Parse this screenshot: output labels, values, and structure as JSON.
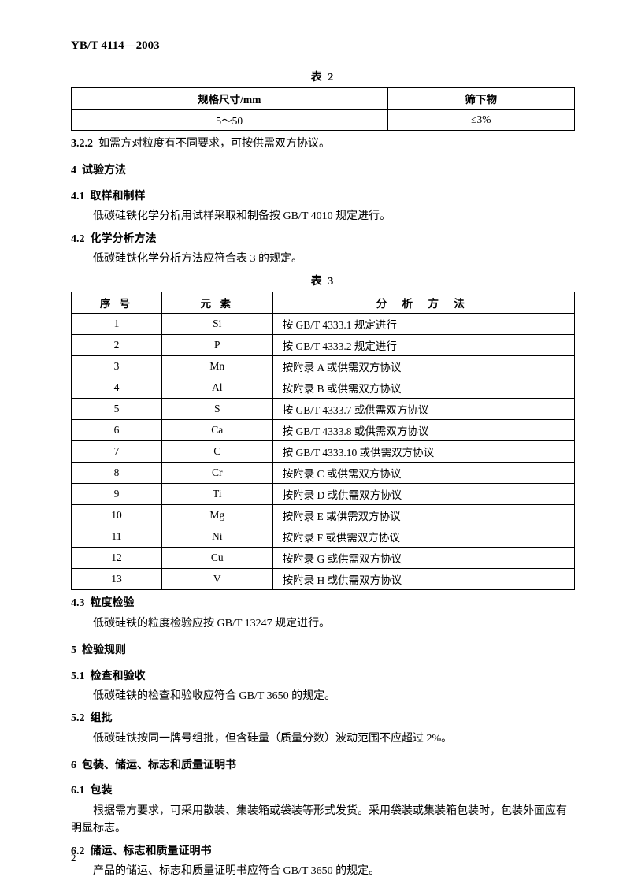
{
  "header": "YB/T 4114—2003",
  "table2": {
    "caption": "表 2",
    "columns": [
      "规格尺寸/mm",
      "筛下物"
    ],
    "row": [
      "5～50",
      "≤3%"
    ]
  },
  "s3_2_2": {
    "num": "3.2.2",
    "text": "如需方对粒度有不同要求，可按供需双方协议。"
  },
  "s4": {
    "num": "4",
    "title": "试验方法"
  },
  "s4_1": {
    "num": "4.1",
    "title": "取样和制样",
    "body": "低碳硅铁化学分析用试样采取和制备按 GB/T 4010 规定进行。"
  },
  "s4_2": {
    "num": "4.2",
    "title": "化学分析方法",
    "body": "低碳硅铁化学分析方法应符合表 3 的规定。"
  },
  "table3": {
    "caption": "表 3",
    "columns": [
      "序 号",
      "元 素",
      "分 析 方 法"
    ],
    "rows": [
      [
        "1",
        "Si",
        "按 GB/T 4333.1 规定进行"
      ],
      [
        "2",
        "P",
        "按 GB/T 4333.2 规定进行"
      ],
      [
        "3",
        "Mn",
        "按附录 A 或供需双方协议"
      ],
      [
        "4",
        "Al",
        "按附录 B 或供需双方协议"
      ],
      [
        "5",
        "S",
        "按 GB/T 4333.7 或供需双方协议"
      ],
      [
        "6",
        "Ca",
        "按 GB/T 4333.8 或供需双方协议"
      ],
      [
        "7",
        "C",
        "按 GB/T 4333.10 或供需双方协议"
      ],
      [
        "8",
        "Cr",
        "按附录 C 或供需双方协议"
      ],
      [
        "9",
        "Ti",
        "按附录 D 或供需双方协议"
      ],
      [
        "10",
        "Mg",
        "按附录 E 或供需双方协议"
      ],
      [
        "11",
        "Ni",
        "按附录 F 或供需双方协议"
      ],
      [
        "12",
        "Cu",
        "按附录 G 或供需双方协议"
      ],
      [
        "13",
        "V",
        "按附录 H 或供需双方协议"
      ]
    ]
  },
  "s4_3": {
    "num": "4.3",
    "title": "粒度检验",
    "body": "低碳硅铁的粒度检验应按 GB/T 13247 规定进行。"
  },
  "s5": {
    "num": "5",
    "title": "检验规则"
  },
  "s5_1": {
    "num": "5.1",
    "title": "检查和验收",
    "body": "低碳硅铁的检查和验收应符合 GB/T 3650 的规定。"
  },
  "s5_2": {
    "num": "5.2",
    "title": "组批",
    "body": "低碳硅铁按同一牌号组批，但含硅量（质量分数）波动范围不应超过 2%。"
  },
  "s6": {
    "num": "6",
    "title": "包装、储运、标志和质量证明书"
  },
  "s6_1": {
    "num": "6.1",
    "title": "包装",
    "body": "根据需方要求，可采用散装、集装箱或袋装等形式发货。采用袋装或集装箱包装时，包装外面应有明显标志。"
  },
  "s6_2": {
    "num": "6.2",
    "title": "储运、标志和质量证明书",
    "body": "产品的储运、标志和质量证明书应符合 GB/T 3650 的规定。"
  },
  "pagenum": "2"
}
